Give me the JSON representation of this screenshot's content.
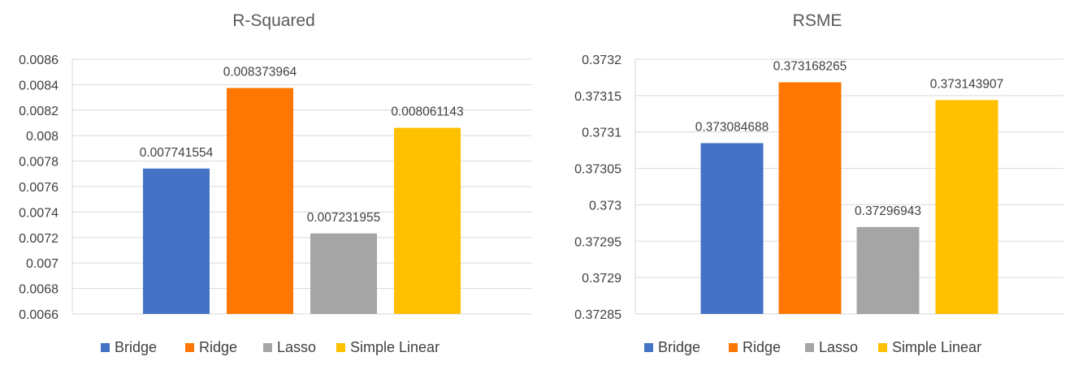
{
  "chart_data": [
    {
      "type": "bar",
      "title": "R-Squared",
      "categories": [
        "Bridge",
        "Ridge",
        "Lasso",
        "Simple Linear"
      ],
      "values": [
        0.007741554,
        0.008373964,
        0.007231955,
        0.008061143
      ],
      "value_labels": [
        "0.007741554",
        "0.008373964",
        "0.007231955",
        "0.008061143"
      ],
      "ylim": [
        0.0066,
        0.0086
      ],
      "yticks": [
        0.0066,
        0.0068,
        0.007,
        0.0072,
        0.0074,
        0.0076,
        0.0078,
        0.008,
        0.0082,
        0.0084,
        0.0086
      ],
      "ytick_labels": [
        "0.0066",
        "0.0068",
        "0.007",
        "0.0072",
        "0.0074",
        "0.0076",
        "0.0078",
        "0.008",
        "0.0082",
        "0.0084",
        "0.0086"
      ],
      "xlabel": "",
      "ylabel": "",
      "grid": true,
      "legend": "bottom",
      "colors": [
        "#4472C4",
        "#FF7700",
        "#A5A5A5",
        "#FFC000"
      ]
    },
    {
      "type": "bar",
      "title": "RSME",
      "categories": [
        "Bridge",
        "Ridge",
        "Lasso",
        "Simple Linear"
      ],
      "values": [
        0.373084688,
        0.373168265,
        0.37296943,
        0.373143907
      ],
      "value_labels": [
        "0.373084688",
        "0.373168265",
        "0.37296943",
        "0.373143907"
      ],
      "ylim": [
        0.37285,
        0.3732
      ],
      "yticks": [
        0.37285,
        0.3729,
        0.37295,
        0.373,
        0.37305,
        0.3731,
        0.37315,
        0.3732
      ],
      "ytick_labels": [
        "0.37285",
        "0.3729",
        "0.37295",
        "0.373",
        "0.37305",
        "0.3731",
        "0.37315",
        "0.3732"
      ],
      "xlabel": "",
      "ylabel": "",
      "grid": true,
      "legend": "bottom",
      "colors": [
        "#4472C4",
        "#FF7700",
        "#A5A5A5",
        "#FFC000"
      ]
    }
  ]
}
